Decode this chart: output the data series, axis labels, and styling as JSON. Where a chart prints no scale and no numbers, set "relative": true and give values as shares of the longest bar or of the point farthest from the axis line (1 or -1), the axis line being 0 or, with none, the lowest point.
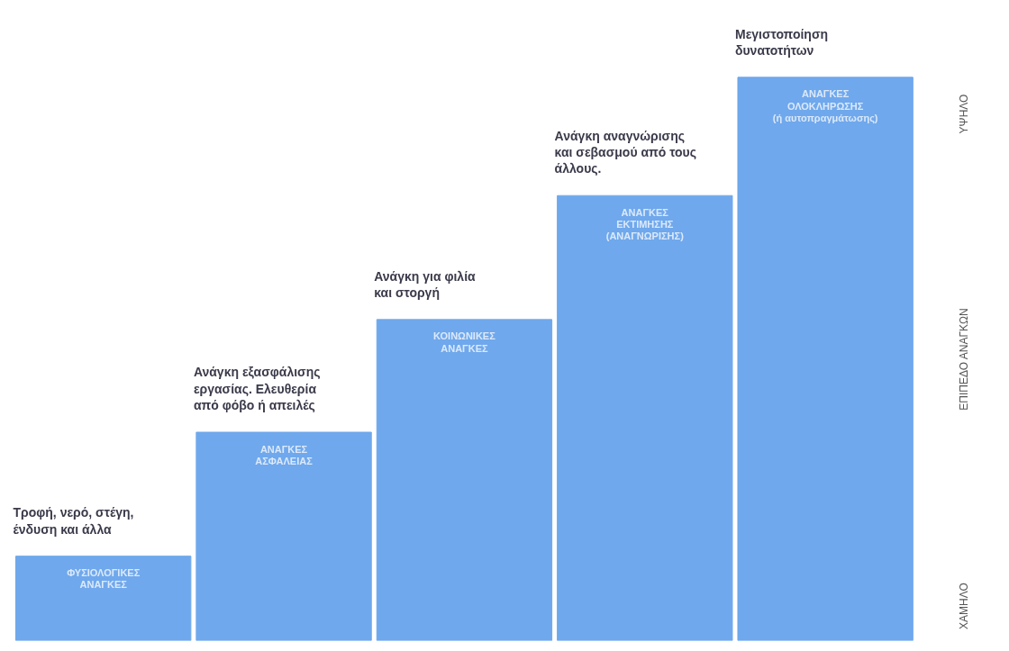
{
  "chart_data": {
    "type": "bar",
    "relative": true,
    "categories": [
      "ΦΥΣΙΟΛΟΓΙΚΕΣ\nΑΝΑΓΚΕΣ",
      "ΑΝΑΓΚΕΣ\nΑΣΦΑΛΕΙΑΣ",
      "ΚΟΙΝΩΝΙΚΕΣ\nΑΝΑΓΚΕΣ",
      "ΑΝΑΓΚΕΣ\nΕΚΤΙΜΗΣΗΣ\n(ΑΝΑΓΝΩΡΙΣΗΣ)",
      "ΑΝΑΓΚΕΣ\nΟΛΟΚΛΗΡΩΣΗΣ\n(ή αυτοπραγμάτωσης)"
    ],
    "values": [
      0.15,
      0.37,
      0.57,
      0.79,
      1
    ],
    "color": "#6fa8ec",
    "ylabel": "ΕΠΙΠΕΔΟ ΑΝΑΓΚΩΝ",
    "annotations": [
      {
        "text": "Τροφή, νερό, στέγη,\nένδυση και άλλα",
        "x": "ΦΥΣΙΟΛΟΓΙΚΕΣ\nΑΝΑΓΚΕΣ",
        "y": 0.15
      },
      {
        "text": "Ανάγκη εξασφάλισης\nεργασίας. Ελευθερία\nαπό φόβο ή απειλές",
        "x": "ΑΝΑΓΚΕΣ\nΑΣΦΑΛΕΙΑΣ",
        "y": 0.37
      },
      {
        "text": "Ανάγκη για φιλία\nκαι στοργή",
        "x": "ΚΟΙΝΩΝΙΚΕΣ\nΑΝΑΓΚΕΣ",
        "y": 0.57
      },
      {
        "text": "Ανάγκη αναγνώρισης\nκαι σεβασμού από τους\nάλλους.",
        "x": "ΑΝΑΓΚΕΣ\nΕΚΤΙΜΗΣΗΣ\n(ΑΝΑΓΝΩΡΙΣΗΣ)",
        "y": 0.79
      },
      {
        "text": "Μεγιστοποίηση\nδυνατοτήτων",
        "x": "ΑΝΑΓΚΕΣ\nΟΛΟΚΛΗΡΩΣΗΣ\n(ή αυτοπραγμάτωσης)",
        "y": 1
      },
      "ΥΨΗΛΟ",
      "ΧΑΜΗΛΟ"
    ]
  }
}
